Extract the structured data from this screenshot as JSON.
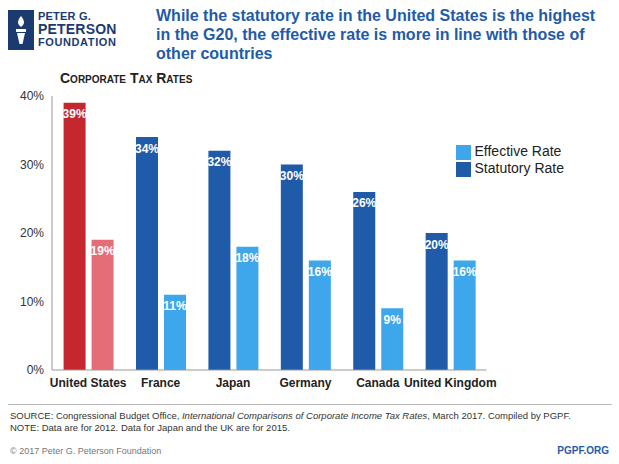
{
  "chart_data": {
    "type": "bar",
    "logo": [
      "PETER G.",
      "PETERSON",
      "FOUNDATION"
    ],
    "title": "While the statutory rate in the United States is the highest in the G20, the effective rate is more in line with those of other countries",
    "subtitle": "Corporate Tax Rates",
    "categories": [
      "United States",
      "France",
      "Japan",
      "Germany",
      "Canada",
      "United Kingdom"
    ],
    "series": [
      {
        "name": "Statutory Rate",
        "color": "#1f5ba8",
        "colors": [
          "#c4282e",
          "#1f5ba8",
          "#1f5ba8",
          "#1f5ba8",
          "#1f5ba8",
          "#1f5ba8"
        ],
        "values": [
          39,
          34,
          32,
          30,
          26,
          20
        ],
        "value_labels": [
          "39%",
          "34%",
          "32%",
          "30%",
          "26%",
          "20%"
        ]
      },
      {
        "name": "Effective Rate",
        "color": "#3ea6ea",
        "colors": [
          "#e56d77",
          "#3ea6ea",
          "#3ea6ea",
          "#3ea6ea",
          "#3ea6ea",
          "#3ea6ea"
        ],
        "values": [
          19,
          11,
          18,
          16,
          9,
          16
        ],
        "value_labels": [
          "19%",
          "11%",
          "18%",
          "16%",
          "9%",
          "16%"
        ]
      }
    ],
    "ylim": [
      0,
      40
    ],
    "yticks": [
      {
        "value": 0,
        "label": "0%"
      },
      {
        "value": 10,
        "label": "10%"
      },
      {
        "value": 20,
        "label": "20%"
      },
      {
        "value": 30,
        "label": "30%"
      },
      {
        "value": 40,
        "label": "40%"
      }
    ],
    "grid": false,
    "legend": "top-right",
    "data_labels": true,
    "annotations": {
      "source": [
        "SOURCE: Congressional Budget Office, ",
        "International Comparisons of Corporate Income Tax Rates",
        ", March 2017. Compiled by PGPF."
      ],
      "note": "NOTE: Data are for 2012. Data for Japan and the UK are for 2015.",
      "copyright": "© 2017 Peter G. Peterson Foundation",
      "website": "PGPF.ORG"
    }
  }
}
